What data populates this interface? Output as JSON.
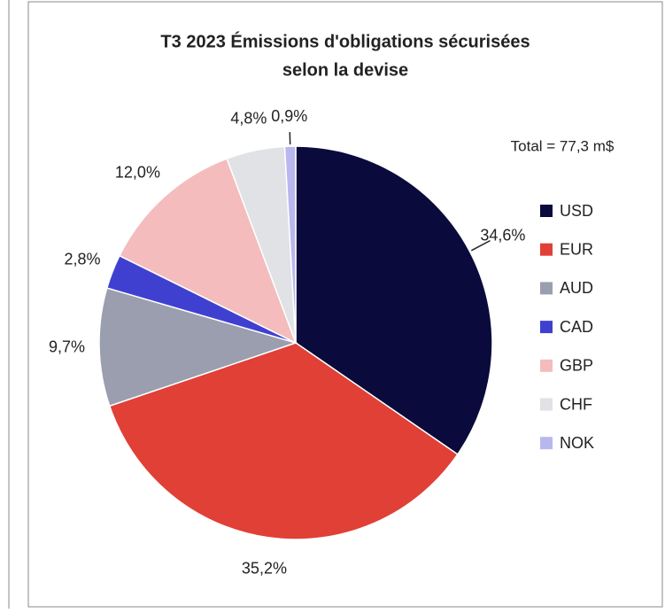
{
  "chart_data": {
    "type": "pie",
    "title": [
      "T3 2023 Émissions d'obligations sécurisées",
      "selon la devise"
    ],
    "annotation": "Total = 77,3 m$",
    "categories": [
      "USD",
      "EUR",
      "AUD",
      "CAD",
      "GBP",
      "CHF",
      "NOK"
    ],
    "values": [
      34.6,
      35.2,
      9.7,
      2.8,
      12.0,
      4.8,
      0.9
    ],
    "value_labels": [
      "34,6%",
      "35,2%",
      "9,7%",
      "2,8%",
      "12,0%",
      "4,8%",
      "0,9%"
    ],
    "colors": [
      "#0a0a3c",
      "#e04035",
      "#9a9eae",
      "#4040d0",
      "#f4bcbc",
      "#e0e2e6",
      "#b8b8ee"
    ],
    "legend": "right"
  }
}
